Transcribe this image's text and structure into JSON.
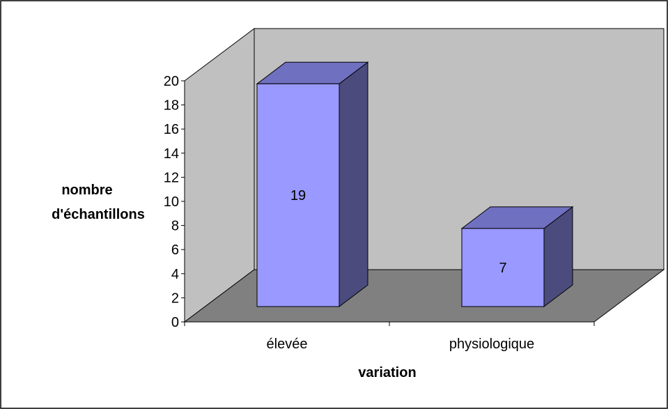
{
  "colors": {
    "back_wall": "#c0c0c0",
    "floor": "#808080",
    "bar_front": "#9999ff",
    "bar_top": "#7070c0",
    "bar_side": "#4b4b7d"
  },
  "chart_data": {
    "type": "bar",
    "style": "3d-column",
    "categories": [
      "élevée",
      "physiologique"
    ],
    "values": [
      19,
      7
    ],
    "data_labels": [
      "19",
      "7"
    ],
    "xlabel": "variation",
    "ylabel_lines": [
      "nombre",
      "d'échantillons"
    ],
    "ylim": [
      0,
      20
    ],
    "y_ticks": [
      "0",
      "2",
      "4",
      "6",
      "8",
      "10",
      "12",
      "14",
      "16",
      "18",
      "20"
    ],
    "grid": false,
    "legend": "none"
  }
}
